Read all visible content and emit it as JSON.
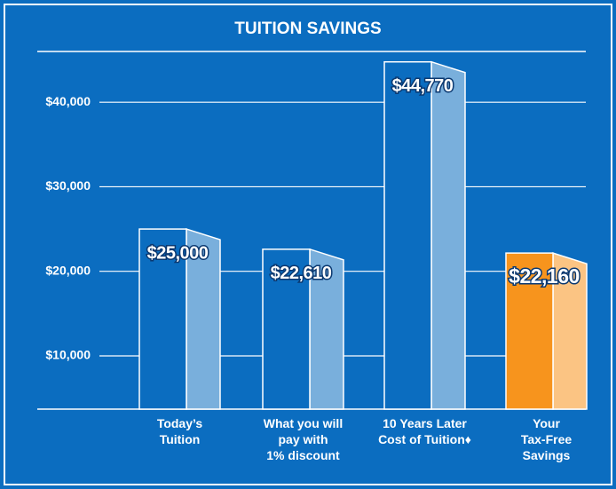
{
  "chart_data": {
    "type": "bar",
    "title": "TUITION SAVINGS",
    "categories": [
      "Today’s\nTuition",
      "What you will\npay with\n1% discount",
      "10 Years Later\nCost of Tuition♦",
      "Your\nTax-Free\nSavings"
    ],
    "values": [
      25000,
      22610,
      44770,
      22160
    ],
    "value_labels": [
      "$25,000",
      "$22,610",
      "$44,770",
      "$22,160"
    ],
    "colors": [
      "#0b6dc0",
      "#0b6dc0",
      "#0b6dc0",
      "#f7941d"
    ],
    "ylim": [
      3700,
      46000
    ],
    "yticks": [
      {
        "value": 10000,
        "label": "$10,000"
      },
      {
        "value": 20000,
        "label": "$20,000"
      },
      {
        "value": 30000,
        "label": "$30,000"
      },
      {
        "value": 40000,
        "label": "$40,000"
      }
    ],
    "grid": true
  }
}
